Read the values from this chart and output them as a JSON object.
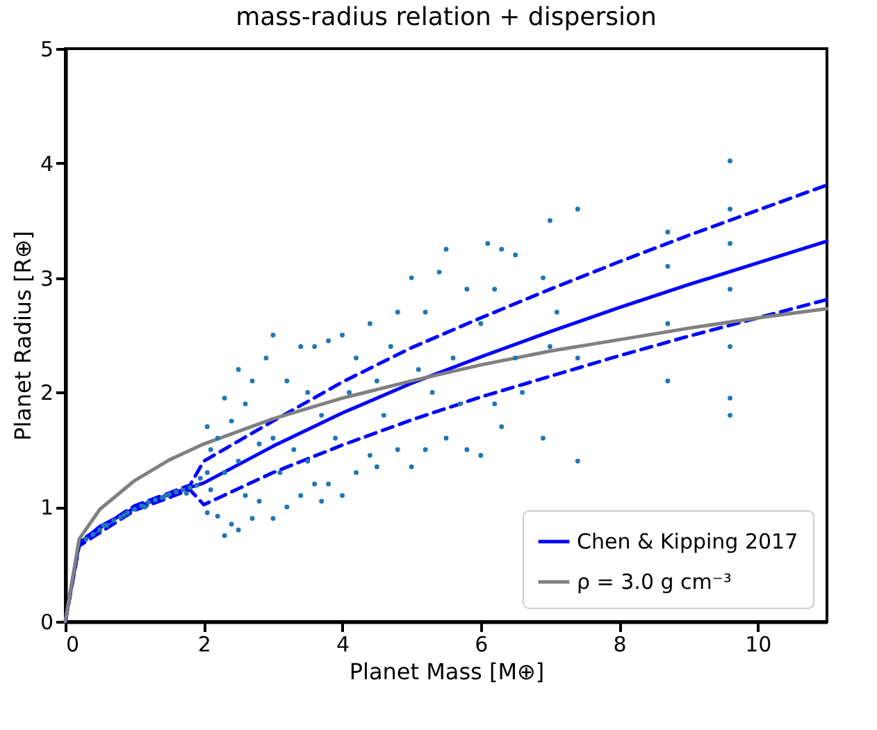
{
  "chart_data": {
    "type": "line",
    "title": "mass-radius relation + dispersion",
    "xlabel": "Planet Mass [M⊕]",
    "ylabel": "Planet Radius [R⊕]",
    "xlim": [
      0,
      11
    ],
    "ylim": [
      0,
      5
    ],
    "xticks": [
      0,
      2,
      4,
      6,
      8,
      10
    ],
    "yticks": [
      0,
      1,
      2,
      3,
      4,
      5
    ],
    "grid": false,
    "legend": "bottom right",
    "series": [
      {
        "type": "scatter",
        "marker": "circle",
        "color": "#1f77b4",
        "x": [
          0.3,
          0.4,
          0.5,
          0.6,
          0.7,
          0.8,
          0.9,
          1.0,
          1.1,
          1.2,
          1.3,
          1.4,
          1.5,
          1.6,
          1.7,
          1.8,
          1.9,
          1.95,
          0.55,
          0.85,
          1.15,
          1.45,
          1.75,
          2.05,
          2.05,
          2.05,
          2.1,
          2.1,
          2.2,
          2.2,
          2.3,
          2.3,
          2.3,
          2.4,
          2.4,
          2.5,
          2.5,
          2.5,
          2.6,
          2.6,
          2.7,
          2.7,
          2.8,
          2.8,
          2.9,
          3.0,
          3.0,
          3.0,
          3.1,
          3.2,
          3.2,
          3.3,
          3.4,
          3.4,
          3.5,
          3.5,
          3.6,
          3.6,
          3.7,
          3.7,
          3.8,
          3.8,
          3.9,
          4.0,
          4.0,
          4.1,
          4.2,
          4.2,
          4.4,
          4.4,
          4.5,
          4.5,
          4.6,
          4.7,
          4.8,
          4.8,
          5.0,
          5.0,
          5.1,
          5.2,
          5.2,
          5.3,
          5.4,
          5.5,
          5.5,
          5.6,
          5.7,
          5.8,
          5.8,
          6.0,
          6.0,
          6.1,
          6.2,
          6.2,
          6.3,
          6.3,
          6.5,
          6.5,
          6.6,
          6.9,
          6.9,
          7.0,
          7.0,
          7.1,
          7.4,
          7.4,
          7.4,
          8.7,
          8.7,
          8.7,
          8.7,
          9.6,
          9.6,
          9.6,
          9.6,
          9.6,
          9.6,
          9.6
        ],
        "values": [
          0.72,
          0.76,
          0.8,
          0.84,
          0.88,
          0.91,
          0.95,
          0.98,
          1.01,
          1.04,
          1.06,
          1.08,
          1.11,
          1.13,
          1.15,
          1.17,
          1.19,
          1.25,
          0.84,
          0.93,
          1.0,
          1.1,
          1.12,
          0.95,
          1.3,
          1.7,
          1.15,
          1.5,
          0.92,
          1.6,
          0.75,
          1.3,
          1.95,
          0.85,
          1.75,
          0.8,
          1.4,
          2.2,
          1.1,
          1.9,
          0.9,
          2.1,
          1.05,
          1.55,
          2.3,
          0.9,
          1.6,
          2.5,
          1.3,
          1.0,
          2.1,
          1.5,
          1.1,
          2.4,
          1.4,
          2.0,
          1.2,
          2.4,
          1.05,
          1.8,
          1.2,
          2.45,
          1.6,
          1.1,
          2.5,
          2.0,
          1.3,
          2.3,
          1.45,
          2.6,
          1.35,
          2.1,
          1.8,
          2.4,
          1.5,
          2.7,
          1.35,
          3.0,
          2.2,
          1.5,
          2.7,
          2.0,
          3.05,
          1.6,
          3.25,
          2.3,
          1.9,
          1.5,
          2.9,
          1.45,
          2.6,
          3.3,
          1.9,
          2.9,
          1.7,
          3.25,
          2.3,
          3.2,
          2.0,
          1.6,
          3.0,
          2.4,
          3.5,
          2.7,
          1.4,
          2.3,
          3.6,
          2.1,
          2.6,
          3.1,
          3.4,
          1.8,
          1.95,
          2.4,
          2.9,
          3.3,
          3.6,
          4.02
        ]
      },
      {
        "name": "Chen & Kipping 2017",
        "type": "line",
        "line_style": "solid",
        "color": "#0000ff",
        "x": [
          0,
          0.2,
          0.5,
          1,
          1.5,
          2,
          3,
          4,
          5,
          6,
          7,
          8,
          9,
          10,
          11
        ],
        "values": [
          0,
          0.68,
          0.83,
          0.99,
          1.11,
          1.21,
          1.53,
          1.82,
          2.08,
          2.31,
          2.53,
          2.74,
          2.94,
          3.13,
          3.32
        ]
      },
      {
        "type": "line",
        "line_style": "dashed",
        "color": "#0000ff",
        "x": [
          0,
          0.2,
          1,
          1.8,
          2,
          3,
          4,
          5,
          6,
          7,
          8,
          9,
          10,
          11
        ],
        "values": [
          0,
          0.7,
          1.01,
          1.19,
          1.4,
          1.75,
          2.09,
          2.39,
          2.65,
          2.9,
          3.14,
          3.37,
          3.59,
          3.81
        ]
      },
      {
        "type": "line",
        "line_style": "dashed",
        "color": "#0000ff",
        "x": [
          0,
          0.2,
          1,
          1.8,
          2,
          3,
          4,
          5,
          6,
          7,
          8,
          9,
          10,
          11
        ],
        "values": [
          0,
          0.66,
          0.97,
          1.15,
          1.02,
          1.3,
          1.54,
          1.76,
          1.96,
          2.14,
          2.32,
          2.49,
          2.65,
          2.81
        ]
      },
      {
        "name": "ρ = 3.0 g cm⁻³",
        "type": "line",
        "line_style": "solid",
        "color": "#808080",
        "x": [
          0,
          0.2,
          0.5,
          1,
          1.5,
          2,
          3,
          4,
          5,
          6,
          7,
          8,
          9,
          10,
          11
        ],
        "values": [
          0,
          0.72,
          0.98,
          1.23,
          1.41,
          1.55,
          1.77,
          1.95,
          2.1,
          2.24,
          2.36,
          2.46,
          2.56,
          2.65,
          2.73
        ]
      }
    ]
  }
}
